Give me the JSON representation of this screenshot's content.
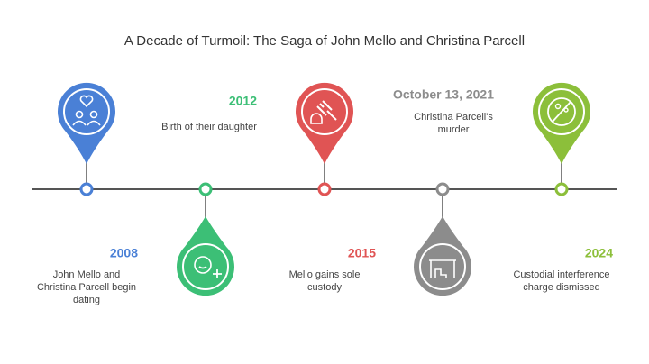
{
  "title": "A Decade of Turmoil: The Saga of John Mello and Christina Parcell",
  "events": [
    {
      "date": "2008",
      "description": [
        "John Mello and",
        "Christina Parcell begin",
        "dating"
      ],
      "color": "#4a80d6"
    },
    {
      "date": "2012",
      "description": [
        "Birth of their daughter"
      ],
      "color": "#3cbf76"
    },
    {
      "date": "2015",
      "description": [
        "Mello gains sole",
        "custody"
      ],
      "color": "#e05454"
    },
    {
      "date": "October 13, 2021",
      "description": [
        "Christina Parcell's",
        "murder"
      ],
      "color": "#8c8c8c"
    },
    {
      "date": "2024",
      "description": [
        "Custodial interference",
        "charge dismissed"
      ],
      "color": "#8cbf3a"
    }
  ]
}
